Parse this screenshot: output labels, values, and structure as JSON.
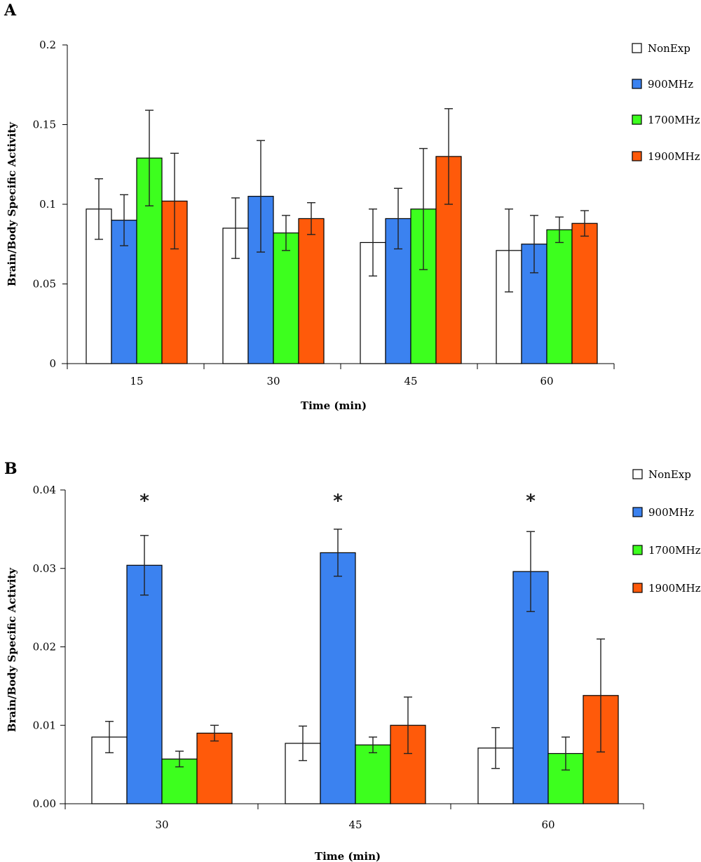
{
  "colors": {
    "NonExp": "#ffffff",
    "900MHz": "#3b82f0",
    "1700MHz": "#3dff1e",
    "1900MHz": "#ff5a0a"
  },
  "chart_data": [
    {
      "panel": "A",
      "type": "bar",
      "xlabel": "Time (min)",
      "ylabel": "Brain/Body Specific Activity",
      "ylim": [
        0,
        0.2
      ],
      "yticks": [
        "0",
        "0.05",
        "0.1",
        "0.15",
        "0.2"
      ],
      "categories": [
        "15",
        "30",
        "45",
        "60"
      ],
      "legend_position": "right",
      "series": [
        {
          "name": "NonExp",
          "values": [
            0.097,
            0.085,
            0.076,
            0.071
          ],
          "errors": [
            0.019,
            0.019,
            0.021,
            0.026
          ]
        },
        {
          "name": "900MHz",
          "values": [
            0.09,
            0.105,
            0.091,
            0.075
          ],
          "errors": [
            0.016,
            0.035,
            0.019,
            0.018
          ]
        },
        {
          "name": "1700MHz",
          "values": [
            0.129,
            0.082,
            0.097,
            0.084
          ],
          "errors": [
            0.03,
            0.011,
            0.038,
            0.008
          ]
        },
        {
          "name": "1900MHz",
          "values": [
            0.102,
            0.091,
            0.13,
            0.088
          ],
          "errors": [
            0.03,
            0.01,
            0.03,
            0.008
          ]
        }
      ]
    },
    {
      "panel": "B",
      "type": "bar",
      "xlabel": "Time (min)",
      "ylabel": "Brain/Body Specific Activity",
      "ylim": [
        0,
        0.04
      ],
      "yticks": [
        "0.00",
        "0.01",
        "0.02",
        "0.03",
        "0.04"
      ],
      "categories": [
        "30",
        "45",
        "60"
      ],
      "legend_position": "right",
      "annotations": [
        "*",
        "*",
        "*"
      ],
      "series": [
        {
          "name": "NonExp",
          "values": [
            0.0085,
            0.0077,
            0.0071
          ],
          "errors": [
            0.002,
            0.0022,
            0.0026
          ]
        },
        {
          "name": "900MHz",
          "values": [
            0.0304,
            0.032,
            0.0296
          ],
          "errors": [
            0.0038,
            0.003,
            0.0051
          ]
        },
        {
          "name": "1700MHz",
          "values": [
            0.0057,
            0.0075,
            0.0064
          ],
          "errors": [
            0.001,
            0.001,
            0.0021
          ]
        },
        {
          "name": "1900MHz",
          "values": [
            0.009,
            0.01,
            0.0138
          ],
          "errors": [
            0.001,
            0.0036,
            0.0072
          ]
        }
      ]
    }
  ]
}
